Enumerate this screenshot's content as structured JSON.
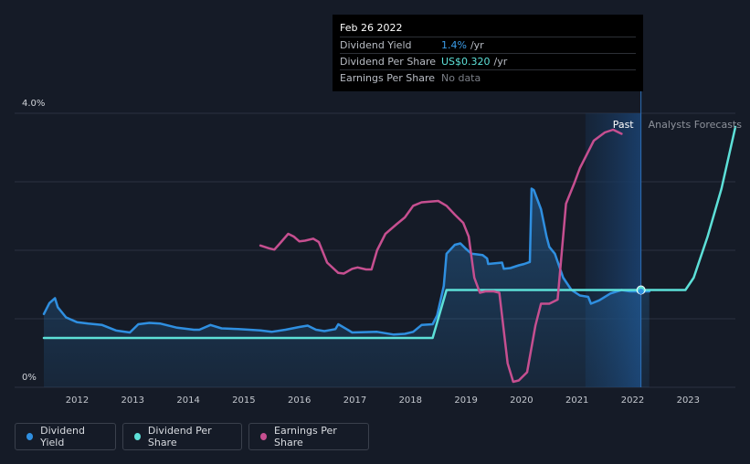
{
  "tooltip": {
    "date": "Feb 26 2022",
    "rows": [
      {
        "label": "Dividend Yield",
        "value": "1.4%",
        "unit": "/yr"
      },
      {
        "label": "Dividend Per Share",
        "value": "US$0.320",
        "unit": "/yr"
      },
      {
        "label": "Earnings Per Share",
        "value": "No data",
        "unit": ""
      }
    ]
  },
  "chart_data": {
    "type": "line",
    "title": "",
    "xlabel": "",
    "ylabel": "",
    "xlim": [
      2011.4,
      2023.85
    ],
    "ylim": [
      0,
      4.0
    ],
    "x_ticks": [
      "2012",
      "2013",
      "2014",
      "2015",
      "2016",
      "2017",
      "2018",
      "2019",
      "2020",
      "2021",
      "2022",
      "2023"
    ],
    "y_tick_labels": [
      "4.0%",
      "0%"
    ],
    "grid": true,
    "past_label": "Past",
    "forecast_label": "Analysts Forecasts",
    "forecast_start": 2022.15,
    "highlight_start": 2021.15,
    "marker_x": 2022.15,
    "series": [
      {
        "name": "Dividend Yield",
        "color": "#2f8fe0",
        "points": [
          [
            2011.4,
            1.07
          ],
          [
            2011.5,
            1.23
          ],
          [
            2011.6,
            1.3
          ],
          [
            2011.65,
            1.17
          ],
          [
            2011.8,
            1.02
          ],
          [
            2012.0,
            0.95
          ],
          [
            2012.2,
            0.93
          ],
          [
            2012.45,
            0.91
          ],
          [
            2012.7,
            0.83
          ],
          [
            2012.95,
            0.8
          ],
          [
            2013.1,
            0.92
          ],
          [
            2013.3,
            0.94
          ],
          [
            2013.5,
            0.93
          ],
          [
            2013.8,
            0.87
          ],
          [
            2014.1,
            0.84
          ],
          [
            2014.2,
            0.84
          ],
          [
            2014.4,
            0.91
          ],
          [
            2014.6,
            0.86
          ],
          [
            2014.9,
            0.85
          ],
          [
            2015.3,
            0.83
          ],
          [
            2015.5,
            0.81
          ],
          [
            2015.75,
            0.84
          ],
          [
            2016.0,
            0.88
          ],
          [
            2016.15,
            0.9
          ],
          [
            2016.3,
            0.84
          ],
          [
            2016.45,
            0.82
          ],
          [
            2016.65,
            0.85
          ],
          [
            2016.7,
            0.92
          ],
          [
            2016.85,
            0.85
          ],
          [
            2016.95,
            0.8
          ],
          [
            2017.4,
            0.81
          ],
          [
            2017.7,
            0.77
          ],
          [
            2017.9,
            0.78
          ],
          [
            2018.05,
            0.81
          ],
          [
            2018.2,
            0.91
          ],
          [
            2018.4,
            0.92
          ],
          [
            2018.48,
            1.05
          ],
          [
            2018.6,
            1.48
          ],
          [
            2018.65,
            1.95
          ],
          [
            2018.8,
            2.08
          ],
          [
            2018.9,
            2.1
          ],
          [
            2019.0,
            2.02
          ],
          [
            2019.1,
            1.95
          ],
          [
            2019.3,
            1.93
          ],
          [
            2019.38,
            1.88
          ],
          [
            2019.4,
            1.8
          ],
          [
            2019.65,
            1.82
          ],
          [
            2019.68,
            1.73
          ],
          [
            2019.8,
            1.74
          ],
          [
            2019.95,
            1.78
          ],
          [
            2020.05,
            1.8
          ],
          [
            2020.15,
            1.83
          ],
          [
            2020.18,
            2.9
          ],
          [
            2020.22,
            2.88
          ],
          [
            2020.35,
            2.6
          ],
          [
            2020.45,
            2.2
          ],
          [
            2020.5,
            2.05
          ],
          [
            2020.6,
            1.95
          ],
          [
            2020.75,
            1.6
          ],
          [
            2020.9,
            1.42
          ],
          [
            2021.05,
            1.34
          ],
          [
            2021.2,
            1.32
          ],
          [
            2021.25,
            1.22
          ],
          [
            2021.4,
            1.27
          ],
          [
            2021.6,
            1.37
          ],
          [
            2021.8,
            1.42
          ],
          [
            2021.95,
            1.4
          ],
          [
            2022.15,
            1.4
          ],
          [
            2022.3,
            1.4
          ]
        ]
      },
      {
        "name": "Dividend Per Share",
        "color": "#5de0d8",
        "points": [
          [
            2011.4,
            0.72
          ],
          [
            2018.4,
            0.72
          ],
          [
            2018.65,
            1.42
          ],
          [
            2022.15,
            1.42
          ],
          [
            2022.95,
            1.42
          ],
          [
            2023.1,
            1.6
          ],
          [
            2023.35,
            2.2
          ],
          [
            2023.6,
            2.9
          ],
          [
            2023.85,
            3.8
          ]
        ]
      },
      {
        "name": "Earnings Per Share",
        "color": "#c64f90",
        "points": [
          [
            2015.3,
            2.07
          ],
          [
            2015.45,
            2.03
          ],
          [
            2015.55,
            2.01
          ],
          [
            2015.65,
            2.1
          ],
          [
            2015.8,
            2.24
          ],
          [
            2015.9,
            2.2
          ],
          [
            2016.0,
            2.13
          ],
          [
            2016.1,
            2.14
          ],
          [
            2016.25,
            2.17
          ],
          [
            2016.35,
            2.12
          ],
          [
            2016.5,
            1.82
          ],
          [
            2016.7,
            1.67
          ],
          [
            2016.8,
            1.66
          ],
          [
            2016.95,
            1.73
          ],
          [
            2017.05,
            1.75
          ],
          [
            2017.2,
            1.72
          ],
          [
            2017.3,
            1.72
          ],
          [
            2017.4,
            2.0
          ],
          [
            2017.55,
            2.24
          ],
          [
            2017.75,
            2.38
          ],
          [
            2017.9,
            2.48
          ],
          [
            2018.05,
            2.65
          ],
          [
            2018.2,
            2.7
          ],
          [
            2018.5,
            2.72
          ],
          [
            2018.65,
            2.65
          ],
          [
            2018.8,
            2.52
          ],
          [
            2018.95,
            2.4
          ],
          [
            2019.05,
            2.2
          ],
          [
            2019.15,
            1.6
          ],
          [
            2019.25,
            1.38
          ],
          [
            2019.35,
            1.4
          ],
          [
            2019.5,
            1.4
          ],
          [
            2019.6,
            1.38
          ],
          [
            2019.75,
            0.35
          ],
          [
            2019.85,
            0.08
          ],
          [
            2019.95,
            0.1
          ],
          [
            2020.1,
            0.22
          ],
          [
            2020.25,
            0.9
          ],
          [
            2020.35,
            1.22
          ],
          [
            2020.5,
            1.22
          ],
          [
            2020.65,
            1.28
          ],
          [
            2020.8,
            2.68
          ],
          [
            2020.95,
            2.98
          ],
          [
            2021.05,
            3.2
          ],
          [
            2021.3,
            3.6
          ],
          [
            2021.5,
            3.72
          ],
          [
            2021.65,
            3.76
          ],
          [
            2021.8,
            3.7
          ]
        ]
      }
    ]
  },
  "legend": [
    {
      "label": "Dividend Yield",
      "color": "#2f8fe0"
    },
    {
      "label": "Dividend Per Share",
      "color": "#5de0d8"
    },
    {
      "label": "Earnings Per Share",
      "color": "#c64f90"
    }
  ]
}
